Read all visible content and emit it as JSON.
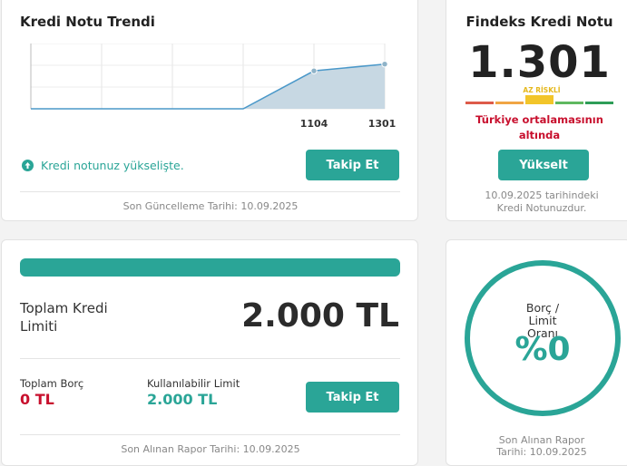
{
  "trend": {
    "title": "Kredi Notu Trendi",
    "status_text": "Kredi notunuz yükselişte.",
    "button": "Takip Et",
    "footer": "Son Güncelleme Tarihi: 10.09.2025"
  },
  "chart_data": {
    "type": "area",
    "x": [
      0,
      1,
      2,
      3,
      4,
      5
    ],
    "values": [
      0,
      0,
      0,
      0,
      1104,
      1301
    ],
    "tick_labels": [
      "",
      "",
      "",
      "",
      "1104",
      "1301"
    ],
    "marker_points": [
      4,
      5
    ],
    "ylim": [
      0,
      1900
    ],
    "grid": true,
    "color": "#4a98c9",
    "fill": "#c7d8e3"
  },
  "findeks": {
    "title": "Findeks Kredi Notu",
    "score": "1.301",
    "risk_label": "AZ RİSKLİ",
    "risk_colors": [
      "#dd5b4a",
      "#f0a544",
      "#f2c52a",
      "#5fb860",
      "#2e9d58"
    ],
    "warning": "Türkiye ortalamasının altında",
    "button": "Yükselt",
    "footer": "10.09.2025 tarihindeki Kredi Notunuzdur."
  },
  "limit": {
    "progress_percent": 100,
    "total_label": "Toplam Kredi Limiti",
    "total_value": "2.000 TL",
    "debt_label": "Toplam Borç",
    "debt_value": "0 TL",
    "available_label": "Kullanılabilir Limit",
    "available_value": "2.000 TL",
    "button": "Takip Et",
    "footer": "Son Alınan Rapor Tarihi: 10.09.2025"
  },
  "ratio": {
    "label": "Borç / Limit Oranı",
    "value": "%0",
    "footer": "Son Alınan Rapor Tarihi: 10.09.2025"
  },
  "colors": {
    "accent": "#2aa597",
    "danger": "#c8102e"
  }
}
